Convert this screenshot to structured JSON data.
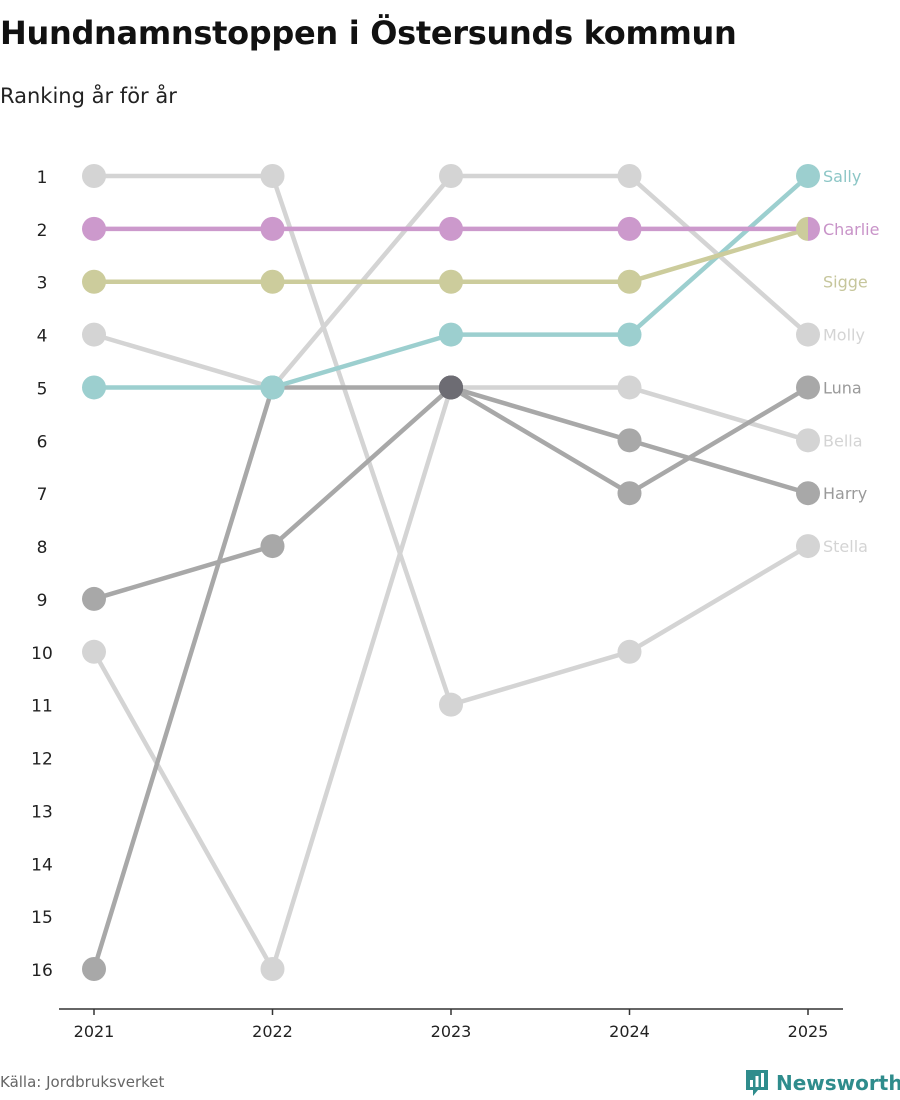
{
  "header": {
    "title": "Hundnamnstoppen i Östersunds kommun",
    "subtitle": "Ranking år för år"
  },
  "footer": {
    "source": "Källa: Jordbruksverket",
    "brand": "Newsworthy"
  },
  "chart_data": {
    "type": "line",
    "subtype": "bump",
    "x": [
      "2021",
      "2022",
      "2023",
      "2024",
      "2025"
    ],
    "y_ticks": [
      1,
      2,
      3,
      4,
      5,
      6,
      7,
      8,
      9,
      10,
      11,
      12,
      13,
      14,
      15,
      16
    ],
    "ylim": [
      1,
      16
    ],
    "y_inverted": true,
    "grid": false,
    "legend": "end-labels",
    "series": [
      {
        "name": "Molly",
        "values": [
          4,
          5,
          1,
          1,
          4
        ],
        "color": "#d4d4d4",
        "label_color": "#d4d4d4"
      },
      {
        "name": "Bella",
        "values": [
          10,
          16,
          5,
          5,
          6
        ],
        "color": "#d4d4d4",
        "label_color": "#d4d4d4"
      },
      {
        "name": "Stella",
        "values": [
          1,
          1,
          11,
          10,
          8
        ],
        "color": "#d4d4d4",
        "label_color": "#d4d4d4"
      },
      {
        "name": "Luna",
        "values": [
          16,
          5,
          5,
          7,
          5
        ],
        "color": "#a8a8a8",
        "label_color": "#9a9a9a"
      },
      {
        "name": "Harry",
        "values": [
          9,
          8,
          5,
          6,
          7
        ],
        "color": "#a8a8a8",
        "label_color": "#9a9a9a"
      },
      {
        "name": "Sally",
        "values": [
          5,
          5,
          4,
          4,
          1
        ],
        "color": "#9ccfcf",
        "label_color": "#8cc6c6"
      },
      {
        "name": "Sigge",
        "values": [
          3,
          3,
          3,
          3,
          2
        ],
        "color": "#cccc9c",
        "label_color": "#c6c69c"
      },
      {
        "name": "Charlie",
        "values": [
          2,
          2,
          2,
          2,
          2
        ],
        "color": "#cc99cc",
        "label_color": "#c893c8"
      }
    ],
    "end_label_ranks": {
      "Sally": 1,
      "Charlie": 2,
      "Sigge": 3,
      "Molly": 4,
      "Luna": 5,
      "Bella": 6,
      "Harry": 7,
      "Stella": 8
    },
    "overlap_color": "#6d6c73"
  }
}
